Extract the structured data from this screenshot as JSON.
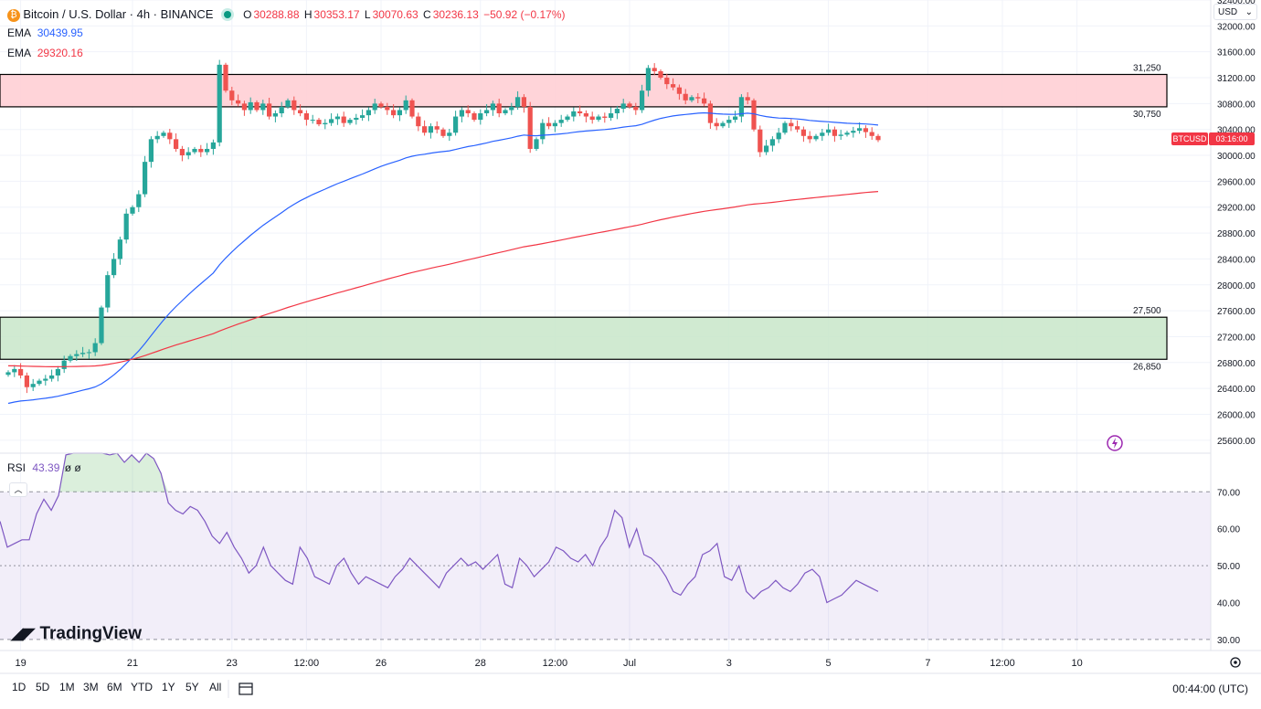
{
  "header": {
    "symbol_title": "Bitcoin / U.S. Dollar · 4h · BINANCE",
    "ohlc": {
      "o_label": "O",
      "o": "30288.88",
      "h_label": "H",
      "h": "30353.17",
      "l_label": "L",
      "l": "30070.63",
      "c_label": "C",
      "c": "30236.13",
      "change": "−50.92 (−0.17%)"
    },
    "ema_fast": {
      "label": "EMA",
      "value": "30439.95",
      "color": "#2962ff"
    },
    "ema_slow": {
      "label": "EMA",
      "value": "29320.16",
      "color": "#f23645"
    }
  },
  "currency_select": "USD",
  "price_badge": {
    "symbol": "BTCUSD",
    "countdown": "03:16:00"
  },
  "rsi": {
    "label": "RSI",
    "value": "43.39",
    "extra": "ø ø"
  },
  "timeframes": [
    "1D",
    "5D",
    "1M",
    "3M",
    "6M",
    "YTD",
    "1Y",
    "5Y",
    "All"
  ],
  "clock": "00:44:00 (UTC)",
  "watermark": "TradingView",
  "colors": {
    "up": "#26a69a",
    "down": "#ef5350",
    "resistance_fill": "#ffcdd2",
    "support_fill": "#c8e6c9",
    "rsi_line": "#7e57c2"
  },
  "chart_data": {
    "type": "candlestick",
    "price_axis": {
      "ylim": [
        25400,
        32400
      ],
      "ticks": [
        25600,
        26000,
        26400,
        26800,
        27200,
        27600,
        28000,
        28400,
        28800,
        29200,
        29600,
        30000,
        30400,
        30800,
        31200,
        31600,
        32000,
        32400
      ],
      "tick_labels": [
        "25600.00",
        "26000.00",
        "26400.00",
        "26800.00",
        "27200.00",
        "27600.00",
        "28000.00",
        "28400.00",
        "28800.00",
        "29200.00",
        "29600.00",
        "30000.00",
        "30400.00",
        "30800.00",
        "31200.00",
        "31600.00",
        "32000.00",
        "32400.00"
      ]
    },
    "zones": [
      {
        "name": "resistance",
        "low": 30750,
        "high": 31250,
        "low_label": "30,750",
        "high_label": "31,250"
      },
      {
        "name": "support",
        "low": 26850,
        "high": 27500,
        "low_label": "26,850",
        "high_label": "27,500"
      }
    ],
    "x_ticks": [
      {
        "i": 2,
        "label": "19"
      },
      {
        "i": 20,
        "label": "21"
      },
      {
        "i": 36,
        "label": "23"
      },
      {
        "i": 48,
        "label": "12:00"
      },
      {
        "i": 60,
        "label": "26"
      },
      {
        "i": 76,
        "label": "28"
      },
      {
        "i": 88,
        "label": "12:00"
      },
      {
        "i": 100,
        "label": "Jul"
      },
      {
        "i": 116,
        "label": "3"
      },
      {
        "i": 132,
        "label": "5"
      },
      {
        "i": 148,
        "label": "7"
      },
      {
        "i": 160,
        "label": "12:00"
      },
      {
        "i": 172,
        "label": "10"
      }
    ],
    "close": [
      26650,
      26700,
      26600,
      26420,
      26470,
      26520,
      26550,
      26600,
      26700,
      26830,
      26900,
      26930,
      26950,
      26960,
      27100,
      27650,
      28150,
      28400,
      28700,
      29100,
      29200,
      29400,
      29900,
      30250,
      30300,
      30350,
      30250,
      30100,
      30000,
      30050,
      30100,
      30050,
      30100,
      30200,
      31400,
      31000,
      30850,
      30800,
      30700,
      30820,
      30700,
      30800,
      30600,
      30650,
      30750,
      30850,
      30700,
      30650,
      30550,
      30550,
      30480,
      30500,
      30560,
      30600,
      30500,
      30550,
      30580,
      30620,
      30700,
      30800,
      30750,
      30700,
      30620,
      30700,
      30850,
      30600,
      30450,
      30350,
      30450,
      30400,
      30300,
      30350,
      30600,
      30700,
      30650,
      30550,
      30650,
      30700,
      30800,
      30650,
      30700,
      30750,
      30900,
      30750,
      30100,
      30250,
      30500,
      30450,
      30500,
      30550,
      30600,
      30680,
      30650,
      30600,
      30550,
      30600,
      30580,
      30650,
      30720,
      30800,
      30750,
      30700,
      31000,
      31350,
      31300,
      31200,
      31100,
      31050,
      30950,
      30850,
      30900,
      30880,
      30800,
      30500,
      30450,
      30500,
      30550,
      30600,
      30900,
      30850,
      30400,
      30050,
      30150,
      30250,
      30350,
      30500,
      30450,
      30400,
      30300,
      30250,
      30300,
      30350,
      30400,
      30300,
      30320,
      30350,
      30380,
      30420,
      30360,
      30300,
      30236
    ],
    "ema_fast_label_value": 30439.95,
    "ema_slow_label_value": 29320.16,
    "rsi_axis": {
      "ylim": [
        27,
        77
      ],
      "ticks": [
        30,
        40,
        50,
        60,
        70
      ],
      "tick_labels": [
        "30.00",
        "40.00",
        "50.00",
        "60.00",
        "70.00"
      ],
      "overbought": 70,
      "oversold": 30,
      "midline": 50
    },
    "rsi_values": [
      62,
      55,
      56,
      57,
      57,
      64,
      68,
      65,
      69,
      80,
      88,
      86,
      83,
      85,
      84,
      80,
      82,
      78,
      80,
      78,
      81,
      79,
      75,
      67,
      65,
      64,
      66,
      65,
      62,
      58,
      56,
      59,
      55,
      52,
      48,
      50,
      55,
      50,
      48,
      46,
      45,
      55,
      52,
      47,
      46,
      45,
      50,
      52,
      48,
      45,
      47,
      46,
      45,
      44,
      47,
      49,
      52,
      50,
      48,
      46,
      44,
      48,
      50,
      52,
      50,
      51,
      49,
      51,
      53,
      45,
      44,
      52,
      50,
      47,
      49,
      51,
      55,
      54,
      52,
      51,
      53,
      50,
      55,
      58,
      65,
      63,
      55,
      60,
      53,
      52,
      50,
      47,
      43,
      42,
      45,
      47,
      53,
      54,
      56,
      47,
      46,
      50,
      43,
      41,
      43,
      44,
      46,
      44,
      43,
      45,
      48,
      49,
      47,
      40,
      41,
      42,
      44,
      46,
      45,
      44,
      43
    ]
  }
}
